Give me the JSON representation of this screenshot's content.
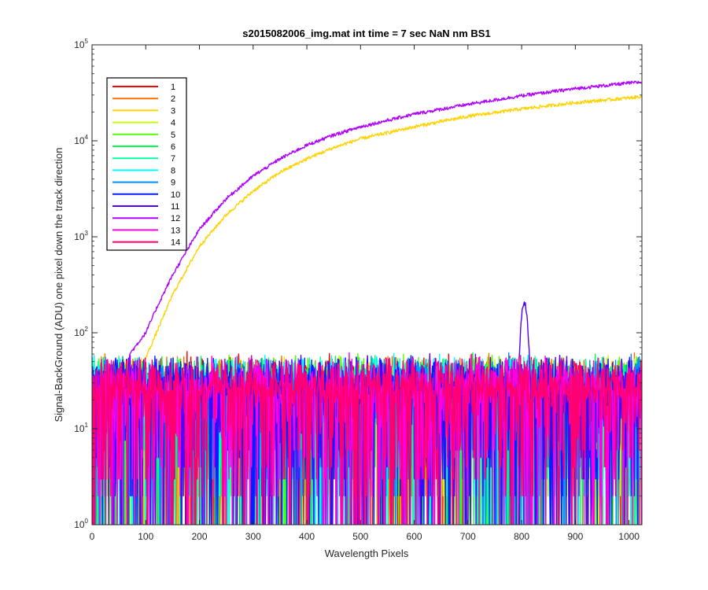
{
  "chart_data": {
    "type": "line",
    "title": "s2015082006_img.mat int time = 7 sec  NaN nm BS1",
    "xlabel": "Wavelength Pixels",
    "ylabel": "Signal-BackGround (ADU) one pixel down the track direction",
    "xlim": [
      0,
      1024
    ],
    "ylim": [
      1,
      100000
    ],
    "yscale": "log",
    "grid": false,
    "legend_position": "top-left",
    "x_ticks": [
      0,
      100,
      200,
      300,
      400,
      500,
      600,
      700,
      800,
      900,
      1000
    ],
    "y_ticks": [
      {
        "base": "10",
        "exp": "0",
        "value": 1
      },
      {
        "base": "10",
        "exp": "1",
        "value": 10
      },
      {
        "base": "10",
        "exp": "2",
        "value": 100
      },
      {
        "base": "10",
        "exp": "3",
        "value": 1000
      },
      {
        "base": "10",
        "exp": "4",
        "value": 10000
      },
      {
        "base": "10",
        "exp": "5",
        "value": 100000
      }
    ],
    "series": [
      {
        "name": "1",
        "color": "#ff0000",
        "kind": "noise"
      },
      {
        "name": "2",
        "color": "#ff7000",
        "kind": "noise"
      },
      {
        "name": "3",
        "color": "#ffd200",
        "kind": "rising",
        "x": [
          90,
          100,
          120,
          150,
          200,
          250,
          300,
          350,
          400,
          450,
          500,
          600,
          700,
          800,
          900,
          1000,
          1024
        ],
        "y": [
          40,
          55,
          100,
          250,
          800,
          1700,
          3000,
          4700,
          6500,
          8500,
          10500,
          14000,
          18000,
          21500,
          25000,
          28000,
          29000
        ]
      },
      {
        "name": "4",
        "color": "#c8ff00",
        "kind": "noise"
      },
      {
        "name": "5",
        "color": "#50ff00",
        "kind": "noise"
      },
      {
        "name": "6",
        "color": "#00ff50",
        "kind": "noise"
      },
      {
        "name": "7",
        "color": "#00ffa0",
        "kind": "noise"
      },
      {
        "name": "8",
        "color": "#00ffff",
        "kind": "noise"
      },
      {
        "name": "9",
        "color": "#0090ff",
        "kind": "noise"
      },
      {
        "name": "10",
        "color": "#0020ff",
        "kind": "noise"
      },
      {
        "name": "11",
        "color": "#5000ff",
        "kind": "noise",
        "peak": {
          "x": 805,
          "y": 220
        }
      },
      {
        "name": "12",
        "color": "#b000ff",
        "kind": "rising",
        "x": [
          70,
          100,
          120,
          150,
          200,
          250,
          300,
          350,
          400,
          450,
          500,
          600,
          700,
          800,
          900,
          1000,
          1024
        ],
        "y": [
          60,
          100,
          180,
          400,
          1200,
          2500,
          4300,
          6500,
          9000,
          11500,
          14000,
          19000,
          24000,
          29500,
          35000,
          40000,
          41000
        ]
      },
      {
        "name": "13",
        "color": "#ff00e0",
        "kind": "noise"
      },
      {
        "name": "14",
        "color": "#ff0070",
        "kind": "noise"
      }
    ]
  }
}
